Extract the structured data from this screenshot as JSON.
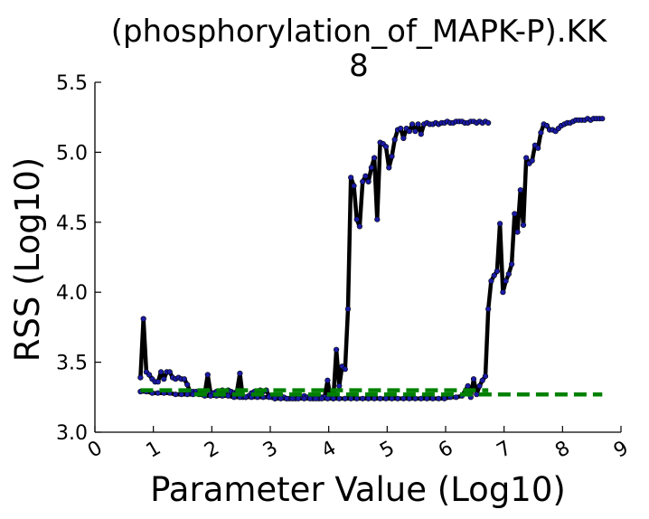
{
  "chart_data": {
    "type": "line",
    "title": "(phosphorylation_of_MAPK-P).KK",
    "subtitle": "8",
    "xlabel": "Parameter Value (Log10)",
    "ylabel": "RSS (Log10)",
    "xlim": [
      0,
      9
    ],
    "ylim": [
      3.0,
      5.5
    ],
    "xticks": [
      "0",
      "1",
      "2",
      "3",
      "4",
      "5",
      "6",
      "7",
      "8",
      "9"
    ],
    "yticks": [
      "3.0",
      "3.5",
      "4.0",
      "4.5",
      "5.0",
      "5.5"
    ],
    "grid": false,
    "colors": {
      "line": "#000000",
      "marker": "#1a1aa6",
      "reference": "#008000"
    },
    "series": [
      {
        "style": "solid",
        "x": [
          0.78,
          0.83,
          0.88,
          0.93,
          0.98,
          1.03,
          1.08,
          1.13,
          1.18,
          1.23,
          1.28,
          1.33,
          1.38,
          1.43,
          1.48,
          1.53,
          1.58,
          1.63,
          1.68,
          1.73,
          1.78,
          1.83,
          1.88,
          1.93,
          1.98,
          2.03,
          2.08,
          2.13,
          2.18,
          2.23,
          2.28,
          2.33,
          2.38,
          2.43,
          2.48,
          2.53,
          2.58,
          2.63,
          2.68,
          2.73,
          2.78,
          2.83,
          2.88,
          2.93,
          2.98,
          3.03,
          3.08,
          3.13,
          3.18,
          3.23,
          3.28,
          3.33,
          3.38,
          3.43,
          3.48,
          3.53,
          3.58,
          3.63,
          3.68,
          3.73,
          3.78,
          3.83,
          3.88,
          3.93,
          3.98,
          4.03,
          4.08,
          4.13,
          4.18,
          4.23,
          4.28,
          4.33,
          4.38,
          4.43,
          4.48,
          4.53,
          4.58,
          4.63,
          4.68,
          4.73,
          4.78,
          4.83,
          4.88,
          4.93,
          4.98,
          5.03,
          5.08,
          5.13,
          5.18,
          5.23,
          5.28,
          5.33,
          5.38,
          5.43,
          5.48,
          5.53,
          5.58,
          5.63,
          5.68,
          5.73,
          5.78,
          5.83,
          5.88,
          5.93,
          5.98,
          6.03,
          6.08,
          6.13,
          6.18,
          6.23,
          6.28,
          6.33,
          6.38,
          6.43,
          6.48,
          6.53,
          6.58,
          6.63,
          6.68,
          6.73
        ],
        "y": [
          3.39,
          3.81,
          3.43,
          3.41,
          3.38,
          3.36,
          3.36,
          3.43,
          3.38,
          3.43,
          3.43,
          3.39,
          3.38,
          3.39,
          3.38,
          3.38,
          3.34,
          3.29,
          3.29,
          3.29,
          3.28,
          3.27,
          3.28,
          3.41,
          3.28,
          3.28,
          3.29,
          3.27,
          3.3,
          3.29,
          3.3,
          3.29,
          3.28,
          3.29,
          3.42,
          3.25,
          3.25,
          3.26,
          3.28,
          3.29,
          3.27,
          3.3,
          3.29,
          3.3,
          3.26,
          3.25,
          3.24,
          3.26,
          3.26,
          3.25,
          3.24,
          3.24,
          3.25,
          3.24,
          3.25,
          3.25,
          3.26,
          3.25,
          3.25,
          3.24,
          3.26,
          3.24,
          3.25,
          3.25,
          3.37,
          3.25,
          3.24,
          3.59,
          3.33,
          3.47,
          3.45,
          3.88,
          4.82,
          4.76,
          4.52,
          4.47,
          4.79,
          4.83,
          4.79,
          4.89,
          4.96,
          4.52,
          5.07,
          5.06,
          5.04,
          4.89,
          4.97,
          5.09,
          5.16,
          5.17,
          5.1,
          5.17,
          5.15,
          5.2,
          5.15,
          5.2,
          5.13,
          5.2,
          5.21,
          5.2,
          5.2,
          5.21,
          5.2,
          5.21,
          5.21,
          5.22,
          5.21,
          5.21,
          5.22,
          5.22,
          5.22,
          5.21,
          5.21,
          5.22,
          5.22,
          5.21,
          5.22,
          5.21,
          5.22,
          5.21
        ]
      },
      {
        "style": "solid",
        "x": [
          0.78,
          0.88,
          0.98,
          1.08,
          1.18,
          1.28,
          1.38,
          1.48,
          1.58,
          1.68,
          1.78,
          1.88,
          1.98,
          2.08,
          2.18,
          2.28,
          2.38,
          2.48,
          2.58,
          2.68,
          2.78,
          2.88,
          2.98,
          3.08,
          3.18,
          3.28,
          3.38,
          3.48,
          3.58,
          3.68,
          3.78,
          3.88,
          3.98,
          4.08,
          4.18,
          4.28,
          4.38,
          4.48,
          4.58,
          4.68,
          4.78,
          4.88,
          4.98,
          5.08,
          5.18,
          5.28,
          5.38,
          5.48,
          5.58,
          5.68,
          5.78,
          5.88,
          5.98,
          6.08,
          6.18,
          6.28,
          6.38,
          6.43,
          6.48,
          6.53,
          6.58,
          6.63,
          6.68,
          6.73,
          6.78,
          6.83,
          6.88,
          6.93,
          6.98,
          7.03,
          7.08,
          7.13,
          7.18,
          7.23,
          7.28,
          7.33,
          7.38,
          7.43,
          7.48,
          7.53,
          7.58,
          7.63,
          7.68,
          7.73,
          7.78,
          7.83,
          7.88,
          7.93,
          7.98,
          8.03,
          8.08,
          8.13,
          8.18,
          8.23,
          8.28,
          8.33,
          8.38,
          8.43,
          8.48,
          8.53,
          8.58,
          8.63,
          8.68
        ],
        "y": [
          3.29,
          3.29,
          3.28,
          3.28,
          3.28,
          3.28,
          3.27,
          3.27,
          3.27,
          3.27,
          3.27,
          3.26,
          3.26,
          3.26,
          3.26,
          3.26,
          3.25,
          3.25,
          3.25,
          3.25,
          3.25,
          3.25,
          3.25,
          3.24,
          3.24,
          3.24,
          3.24,
          3.24,
          3.24,
          3.24,
          3.24,
          3.24,
          3.24,
          3.24,
          3.24,
          3.24,
          3.24,
          3.24,
          3.24,
          3.24,
          3.24,
          3.24,
          3.24,
          3.24,
          3.24,
          3.24,
          3.24,
          3.24,
          3.24,
          3.24,
          3.24,
          3.24,
          3.24,
          3.25,
          3.25,
          3.26,
          3.33,
          3.25,
          3.38,
          3.27,
          3.33,
          3.37,
          3.4,
          3.88,
          4.08,
          4.12,
          4.15,
          4.49,
          4.0,
          4.08,
          4.13,
          4.2,
          4.56,
          4.43,
          4.73,
          4.48,
          4.96,
          4.92,
          4.94,
          5.05,
          5.03,
          5.14,
          5.2,
          5.19,
          5.16,
          5.16,
          5.15,
          5.17,
          5.19,
          5.2,
          5.21,
          5.21,
          5.22,
          5.23,
          5.23,
          5.23,
          5.23,
          5.24,
          5.23,
          5.24,
          5.24,
          5.24,
          5.24
        ]
      },
      {
        "style": "dashed",
        "x": [
          0.78,
          6.73
        ],
        "y": [
          3.3,
          3.3
        ]
      },
      {
        "style": "dashed",
        "x": [
          1.7,
          8.68
        ],
        "y": [
          3.27,
          3.27
        ]
      }
    ]
  }
}
